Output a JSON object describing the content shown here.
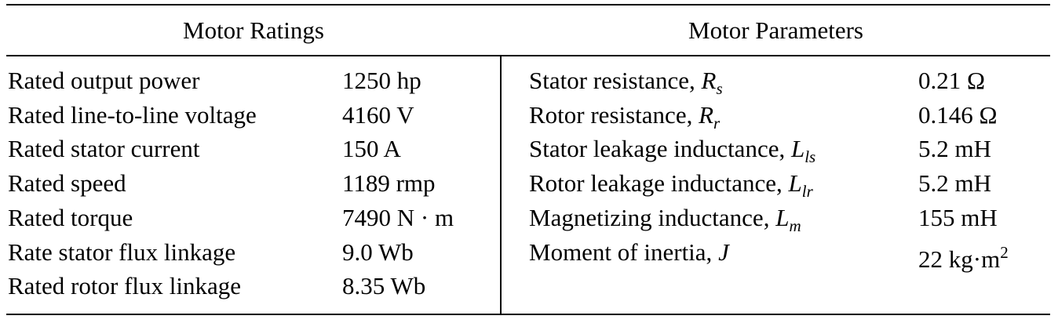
{
  "headers": {
    "left": "Motor Ratings",
    "right": "Motor Parameters"
  },
  "ratings": [
    {
      "label": "Rated output power",
      "value": "1250 hp"
    },
    {
      "label": "Rated line-to-line voltage",
      "value": "4160 V"
    },
    {
      "label": "Rated stator current",
      "value": "150 A"
    },
    {
      "label": "Rated speed",
      "value": "1189 rmp"
    },
    {
      "label": "Rated torque",
      "value": "7490 N · m"
    },
    {
      "label": "Rate stator flux linkage",
      "value": "9.0 Wb"
    },
    {
      "label": "Rated rotor flux linkage",
      "value": "8.35 Wb"
    }
  ],
  "parameters": [
    {
      "label": "Stator resistance, ",
      "symbol": "R",
      "subscript": "s",
      "value": "0.21 Ω"
    },
    {
      "label": "Rotor resistance, ",
      "symbol": "R",
      "subscript": "r",
      "value": "0.146 Ω"
    },
    {
      "label": "Stator leakage inductance, ",
      "symbol": "L",
      "subscript": "ls",
      "value": "5.2 mH"
    },
    {
      "label": "Rotor leakage inductance, ",
      "symbol": "L",
      "subscript": "lr",
      "value": "5.2 mH"
    },
    {
      "label": "Magnetizing inductance, ",
      "symbol": "L",
      "subscript": "m",
      "value": "155 mH"
    },
    {
      "label": "Moment of inertia, ",
      "symbol": "J",
      "subscript": "",
      "value": "22 kg·m",
      "value_superscript": "2"
    }
  ]
}
